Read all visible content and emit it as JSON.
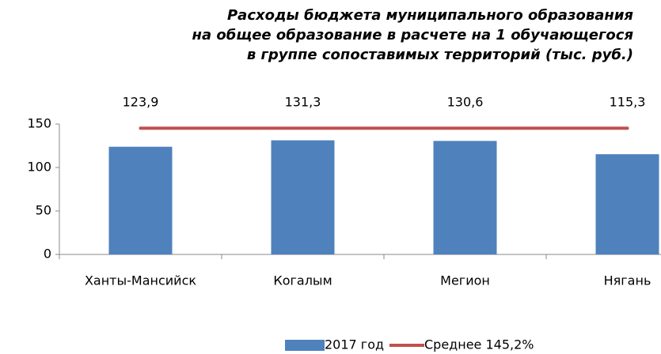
{
  "chart_data": {
    "type": "bar",
    "title": [
      "Расходы бюджета муниципального образования",
      "на общее образование в расчете на 1 обучающегося",
      "в группе сопоставимых территорий (тыс. руб.)"
    ],
    "categories": [
      "Ханты-Мансийск",
      "Когалым",
      "Мегион",
      "Нягань"
    ],
    "series": [
      {
        "name": "2017 год",
        "type": "bar",
        "color": "#4f81bd",
        "values": [
          123.9,
          131.3,
          130.6,
          115.3
        ],
        "value_labels": [
          "123,9",
          "131,3",
          "130,6",
          "115,3"
        ]
      },
      {
        "name": "Среднее 145,2%",
        "type": "line",
        "color": "#c0504d",
        "values": [
          145.2,
          145.2,
          145.2,
          145.2
        ]
      }
    ],
    "ylim": [
      0,
      150
    ],
    "yticks": [
      0,
      50,
      100,
      150
    ],
    "grid": false,
    "legend": "bottom"
  }
}
